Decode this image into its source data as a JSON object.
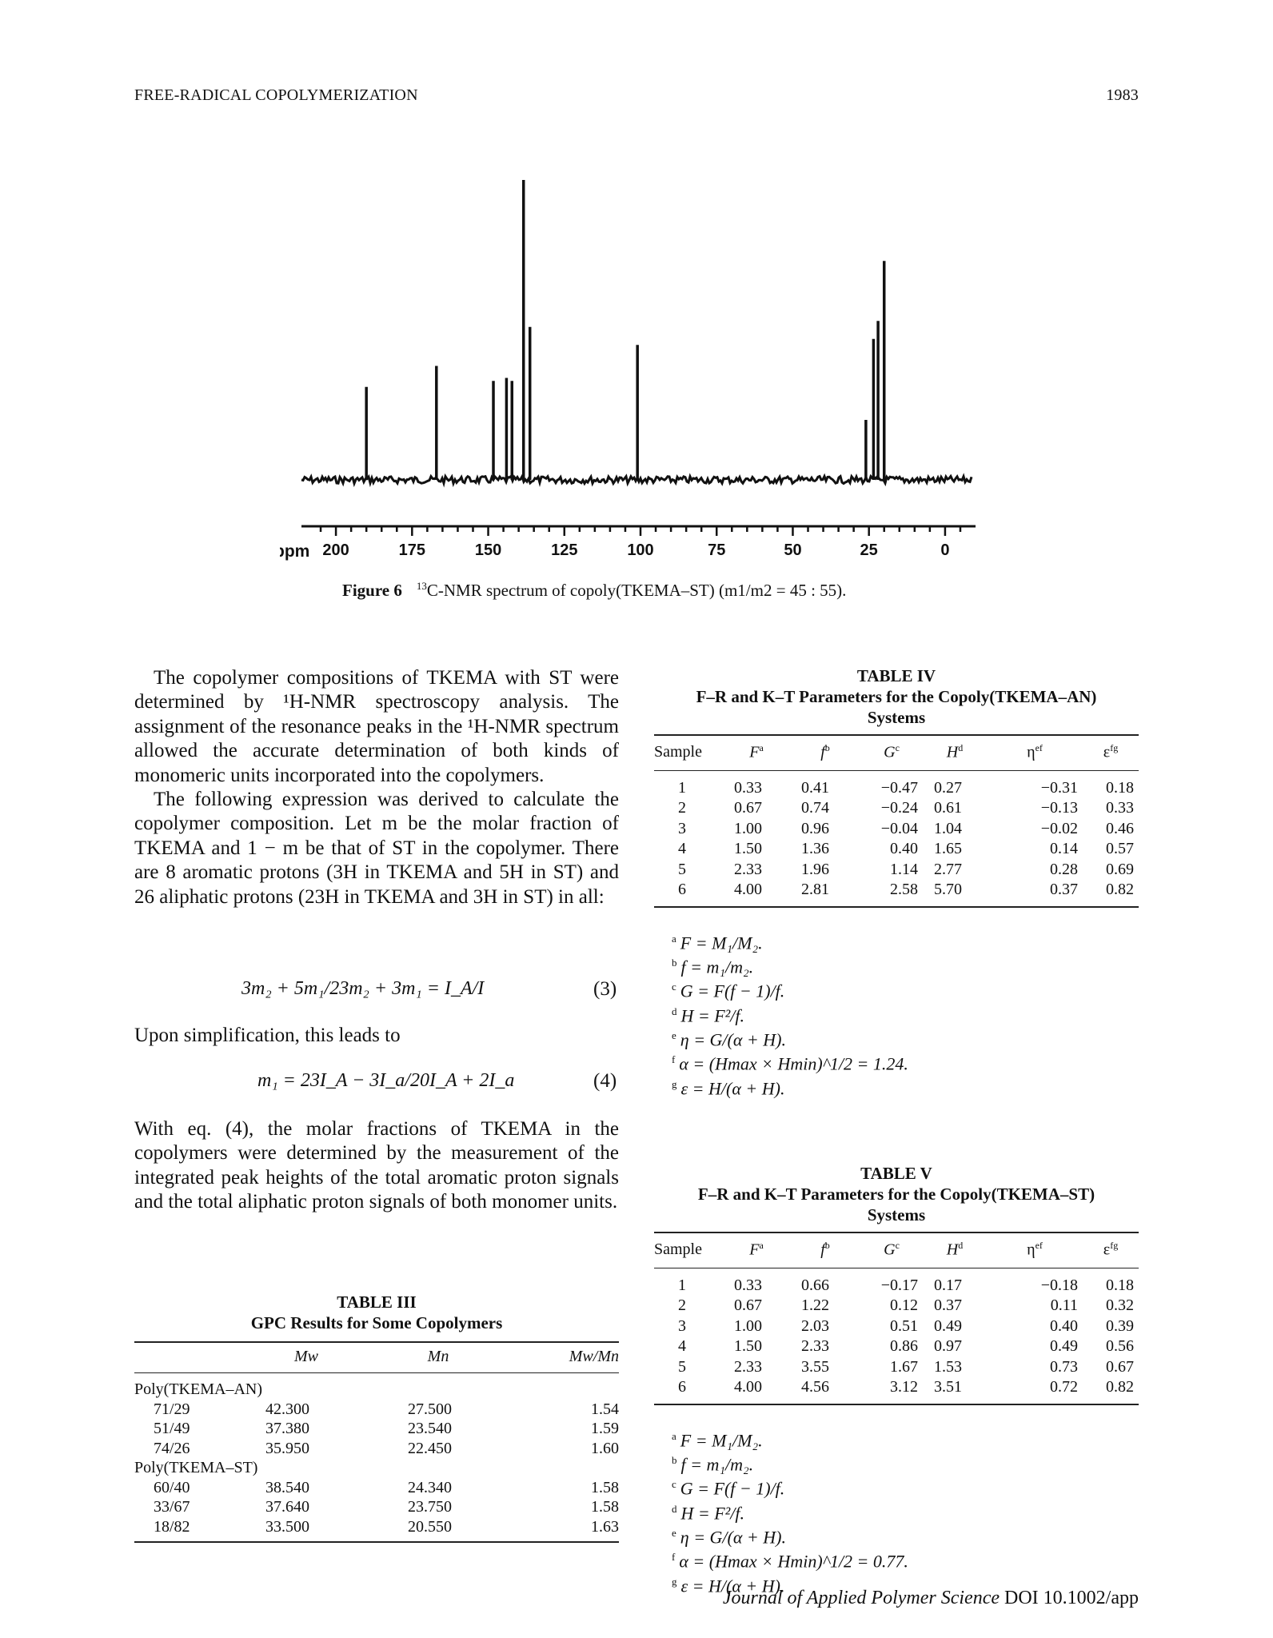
{
  "header": {
    "left": "FREE-RADICAL COPOLYMERIZATION",
    "right": "1983"
  },
  "figure": {
    "label": "Figure 6",
    "caption_sup": "13",
    "caption_text": "C-NMR spectrum of copoly(TKEMA–ST) (m1/m2 = 45 : 55).",
    "axis_unit": "ppm",
    "ticks": [
      "200",
      "175",
      "150",
      "125",
      "100",
      "75",
      "50",
      "25",
      "0"
    ]
  },
  "chart_data": {
    "type": "bar",
    "title": "",
    "xlabel": "ppm",
    "ylabel": "",
    "xlim": [
      210,
      -10
    ],
    "x_ticks": [
      200,
      175,
      150,
      125,
      100,
      75,
      50,
      25,
      0
    ],
    "peaks": [
      {
        "x": 190,
        "y": 0.31
      },
      {
        "x": 167,
        "y": 0.38
      },
      {
        "x": 148.3,
        "y": 0.33
      },
      {
        "x": 144,
        "y": 0.34
      },
      {
        "x": 142.2,
        "y": 0.33
      },
      {
        "x": 138.4,
        "y": 1.0
      },
      {
        "x": 136.3,
        "y": 0.51
      },
      {
        "x": 101,
        "y": 0.45
      },
      {
        "x": 26,
        "y": 0.2
      },
      {
        "x": 23.5,
        "y": 0.47
      },
      {
        "x": 22,
        "y": 0.53
      },
      {
        "x": 20,
        "y": 0.73
      }
    ]
  },
  "left_column": {
    "para1": "The copolymer compositions of TKEMA with ST were determined by ¹H-NMR spectroscopy analysis. The assignment of the resonance peaks in the ¹H-NMR spectrum allowed the accurate determination of both kinds of monomeric units incorporated into the copolymers.",
    "para2": "The following expression was derived to calculate the copolymer composition. Let m be the molar fraction of TKEMA and 1 − m be that of ST in the copolymer. There are 8 aromatic protons (3H in TKEMA and 5H in ST) and 26 aliphatic protons (23H in TKEMA and 3H in ST) in all:",
    "eq3": "3m₂ + 5m₁/23m₂ + 3m₁ = I_A/I",
    "eq3_num": "(3)",
    "para3": "Upon simplification, this leads to",
    "eq4": "m₁ = 23I_A − 3I_a/20I_A + 2I_a",
    "eq4_num": "(4)",
    "para4": "With eq. (4), the molar fractions of TKEMA in the copolymers were determined by the measurement of the integrated peak heights of the total aromatic proton signals and the total aliphatic proton signals of both monomer units."
  },
  "table3": {
    "title1": "TABLE III",
    "title2": "GPC Results for Some Copolymers",
    "headers": [
      "",
      "Mw",
      "Mn",
      "Mw/Mn"
    ],
    "groups": [
      {
        "name": "Poly(TKEMA–AN)",
        "rows": [
          [
            "71/29",
            "42.300",
            "27.500",
            "1.54"
          ],
          [
            "51/49",
            "37.380",
            "23.540",
            "1.59"
          ],
          [
            "74/26",
            "35.950",
            "22.450",
            "1.60"
          ]
        ]
      },
      {
        "name": "Poly(TKEMA–ST)",
        "rows": [
          [
            "60/40",
            "38.540",
            "24.340",
            "1.58"
          ],
          [
            "33/67",
            "37.640",
            "23.750",
            "1.58"
          ],
          [
            "18/82",
            "33.500",
            "20.550",
            "1.63"
          ]
        ]
      }
    ]
  },
  "table4": {
    "title1": "TABLE IV",
    "title2": "F–R and K–T Parameters for the Copoly(TKEMA–AN)",
    "title3": "Systems",
    "headers": [
      "Sample",
      "F",
      "f",
      "G",
      "H",
      "η",
      "ε"
    ],
    "header_sups": [
      "",
      "a",
      "b",
      "c",
      "d",
      "ef",
      "fg"
    ],
    "rows": [
      [
        "1",
        "0.33",
        "0.41",
        "−0.47",
        "0.27",
        "−0.31",
        "0.18"
      ],
      [
        "2",
        "0.67",
        "0.74",
        "−0.24",
        "0.61",
        "−0.13",
        "0.33"
      ],
      [
        "3",
        "1.00",
        "0.96",
        "−0.04",
        "1.04",
        "−0.02",
        "0.46"
      ],
      [
        "4",
        "1.50",
        "1.36",
        "0.40",
        "1.65",
        "0.14",
        "0.57"
      ],
      [
        "5",
        "2.33",
        "1.96",
        "1.14",
        "2.77",
        "0.28",
        "0.69"
      ],
      [
        "6",
        "4.00",
        "2.81",
        "2.58",
        "5.70",
        "0.37",
        "0.82"
      ]
    ],
    "notes": [
      {
        "k": "a",
        "t": "F = M₁/M₂."
      },
      {
        "k": "b",
        "t": "f = m₁/m₂."
      },
      {
        "k": "c",
        "t": "G = F(f − 1)/f."
      },
      {
        "k": "d",
        "t": "H = F²/f."
      },
      {
        "k": "e",
        "t": "η = G/(α + H)."
      },
      {
        "k": "f",
        "t": "α = (Hmax × Hmin)^1/2 = 1.24."
      },
      {
        "k": "g",
        "t": "ε = H/(α + H)."
      }
    ]
  },
  "table5": {
    "title1": "TABLE V",
    "title2": "F–R and K–T Parameters for the Copoly(TKEMA–ST)",
    "title3": "Systems",
    "headers": [
      "Sample",
      "F",
      "f",
      "G",
      "H",
      "η",
      "ε"
    ],
    "header_sups": [
      "",
      "a",
      "b",
      "c",
      "d",
      "ef",
      "fg"
    ],
    "rows": [
      [
        "1",
        "0.33",
        "0.66",
        "−0.17",
        "0.17",
        "−0.18",
        "0.18"
      ],
      [
        "2",
        "0.67",
        "1.22",
        "0.12",
        "0.37",
        "0.11",
        "0.32"
      ],
      [
        "3",
        "1.00",
        "2.03",
        "0.51",
        "0.49",
        "0.40",
        "0.39"
      ],
      [
        "4",
        "1.50",
        "2.33",
        "0.86",
        "0.97",
        "0.49",
        "0.56"
      ],
      [
        "5",
        "2.33",
        "3.55",
        "1.67",
        "1.53",
        "0.73",
        "0.67"
      ],
      [
        "6",
        "4.00",
        "4.56",
        "3.12",
        "3.51",
        "0.72",
        "0.82"
      ]
    ],
    "notes": [
      {
        "k": "a",
        "t": "F = M₁/M₂."
      },
      {
        "k": "b",
        "t": "f = m₁/m₂."
      },
      {
        "k": "c",
        "t": "G = F(f − 1)/f."
      },
      {
        "k": "d",
        "t": "H = F²/f."
      },
      {
        "k": "e",
        "t": "η = G/(α + H)."
      },
      {
        "k": "f",
        "t": "α = (Hmax × Hmin)^1/2 = 0.77."
      },
      {
        "k": "g",
        "t": "ε = H/(α + H)."
      }
    ]
  },
  "footer": {
    "journal": "Journal of Applied Polymer Science",
    "doi": "DOI 10.1002/app"
  }
}
